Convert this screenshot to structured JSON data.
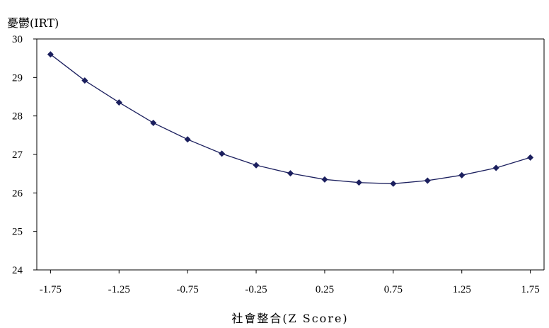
{
  "chart_data": {
    "type": "line",
    "ylabel": "憂鬱(IRT)",
    "xlabel": "社會整合(Z Score)",
    "ylim": [
      24,
      30
    ],
    "xlim": [
      -1.85,
      1.85
    ],
    "yticks": [
      "24",
      "25",
      "26",
      "27",
      "28",
      "29",
      "30"
    ],
    "xticks": [
      "-1.75",
      "-1.25",
      "-0.75",
      "-0.25",
      "0.25",
      "0.75",
      "1.25",
      "1.75"
    ],
    "grid": false,
    "series": [
      {
        "x": [
          -1.75,
          -1.5,
          -1.25,
          -1.0,
          -0.75,
          -0.5,
          -0.25,
          0.0,
          0.25,
          0.5,
          0.75,
          1.0,
          1.25,
          1.5,
          1.75
        ],
        "values": [
          29.6,
          28.92,
          28.35,
          27.82,
          27.39,
          27.02,
          26.72,
          26.51,
          26.35,
          26.27,
          26.24,
          26.32,
          26.46,
          26.65,
          26.92
        ],
        "color": "#1b1f5e",
        "marker": "diamond"
      }
    ]
  }
}
